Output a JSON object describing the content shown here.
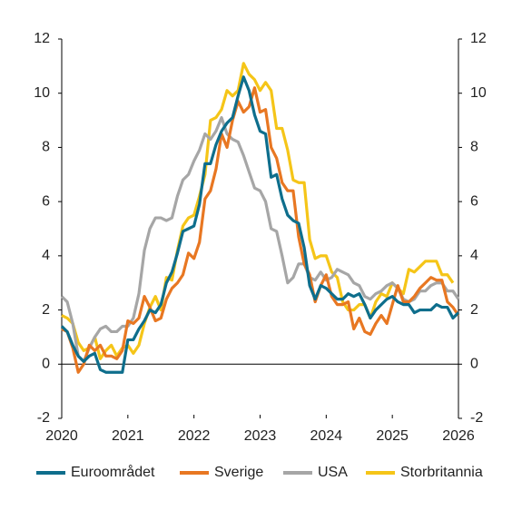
{
  "chart_data": {
    "type": "line",
    "x": [
      2020,
      2020.083,
      2020.167,
      2020.25,
      2020.333,
      2020.417,
      2020.5,
      2020.583,
      2020.667,
      2020.75,
      2020.833,
      2020.917,
      2021,
      2021.083,
      2021.167,
      2021.25,
      2021.333,
      2021.417,
      2021.5,
      2021.583,
      2021.667,
      2021.75,
      2021.833,
      2021.917,
      2022,
      2022.083,
      2022.167,
      2022.25,
      2022.333,
      2022.417,
      2022.5,
      2022.583,
      2022.667,
      2022.75,
      2022.833,
      2022.917,
      2023,
      2023.083,
      2023.167,
      2023.25,
      2023.333,
      2023.417,
      2023.5,
      2023.583,
      2023.667,
      2023.75,
      2023.833,
      2023.917,
      2024,
      2024.083,
      2024.167,
      2024.25,
      2024.333,
      2024.417,
      2024.5,
      2024.583,
      2024.667,
      2024.75,
      2024.833,
      2024.917,
      2025,
      2025.083,
      2025.167,
      2025.25,
      2025.333,
      2025.417,
      2025.5,
      2025.583,
      2025.667,
      2025.75,
      2025.833,
      2025.917,
      2026
    ],
    "series": [
      {
        "name": "Euroområdet",
        "color": "#0e6e8c",
        "values": [
          1.4,
          1.2,
          0.7,
          0.3,
          0.1,
          0.3,
          0.4,
          -0.2,
          -0.3,
          -0.3,
          -0.3,
          -0.3,
          0.9,
          0.9,
          1.3,
          1.6,
          2.0,
          1.9,
          2.2,
          3.0,
          3.4,
          4.1,
          4.9,
          5.0,
          5.1,
          5.9,
          7.4,
          7.4,
          8.1,
          8.6,
          8.9,
          9.1,
          9.9,
          10.6,
          10.1,
          9.2,
          8.6,
          8.5,
          6.9,
          7.0,
          6.1,
          5.5,
          5.3,
          5.2,
          4.3,
          2.9,
          2.4,
          2.9,
          2.8,
          2.6,
          2.4,
          2.4,
          2.6,
          2.5,
          2.6,
          2.2,
          1.7,
          2.0,
          2.2,
          2.4,
          2.5,
          2.3,
          2.2,
          2.2,
          1.9,
          2.0,
          2.0,
          2.0,
          2.2,
          2.1,
          2.1,
          1.7,
          1.9
        ]
      },
      {
        "name": "Sverige",
        "color": "#e87722",
        "values": [
          1.3,
          1.2,
          0.6,
          -0.3,
          0.0,
          0.7,
          0.5,
          0.7,
          0.3,
          0.3,
          0.2,
          0.5,
          1.6,
          1.5,
          1.7,
          2.5,
          2.1,
          1.6,
          1.7,
          2.4,
          2.8,
          3.0,
          3.3,
          4.1,
          3.9,
          4.5,
          6.1,
          6.4,
          7.2,
          8.5,
          8.0,
          9.0,
          9.7,
          9.3,
          9.5,
          10.2,
          9.3,
          9.4,
          8.0,
          7.6,
          6.7,
          6.4,
          6.4,
          4.7,
          3.7,
          3.3,
          2.3,
          2.9,
          3.3,
          2.5,
          2.2,
          2.2,
          2.3,
          1.3,
          1.7,
          1.2,
          1.1,
          1.5,
          1.8,
          1.5,
          2.2,
          2.9,
          2.3,
          2.3,
          2.5,
          2.8,
          3.0,
          3.2,
          3.1,
          3.1,
          2.3,
          2.1,
          1.8
        ]
      },
      {
        "name": "USA",
        "color": "#a6a6a6",
        "values": [
          2.5,
          2.3,
          1.5,
          0.3,
          0.1,
          0.6,
          1.0,
          1.3,
          1.4,
          1.2,
          1.2,
          1.4,
          1.4,
          1.7,
          2.6,
          4.2,
          5.0,
          5.4,
          5.4,
          5.3,
          5.4,
          6.2,
          6.8,
          7.0,
          7.5,
          7.9,
          8.5,
          8.3,
          8.6,
          9.1,
          8.5,
          8.3,
          8.2,
          7.7,
          7.1,
          6.5,
          6.4,
          6.0,
          5.0,
          4.9,
          4.0,
          3.0,
          3.2,
          3.7,
          3.7,
          3.2,
          3.1,
          3.4,
          3.1,
          3.2,
          3.5,
          3.4,
          3.3,
          3.0,
          2.9,
          2.5,
          2.4,
          2.6,
          2.7,
          2.9,
          3.0,
          2.8,
          2.4,
          2.3,
          2.4,
          2.7,
          2.7,
          2.9,
          3.0,
          3.0,
          2.7,
          2.7,
          2.4
        ]
      },
      {
        "name": "Storbritannia",
        "color": "#f5c518",
        "values": [
          1.8,
          1.7,
          1.5,
          0.8,
          0.5,
          0.6,
          1.0,
          0.2,
          0.5,
          0.7,
          0.3,
          0.6,
          0.7,
          0.4,
          0.7,
          1.5,
          2.1,
          2.5,
          2.0,
          3.2,
          3.1,
          4.2,
          5.1,
          5.4,
          5.5,
          6.2,
          7.0,
          9.0,
          9.1,
          9.4,
          10.1,
          9.9,
          10.1,
          11.1,
          10.7,
          10.5,
          10.1,
          10.4,
          10.1,
          8.7,
          8.7,
          7.9,
          6.8,
          6.7,
          6.7,
          4.6,
          3.9,
          4.0,
          4.0,
          3.4,
          3.2,
          2.3,
          2.0,
          2.0,
          2.2,
          2.2,
          1.7,
          2.3,
          2.6,
          2.5,
          3.0,
          2.8,
          2.6,
          3.5,
          3.4,
          3.6,
          3.8,
          3.8,
          3.8,
          3.3,
          3.3,
          3.0,
          null
        ]
      }
    ],
    "xlim": [
      2020,
      2026
    ],
    "xticks": [
      2020,
      2021,
      2022,
      2023,
      2024,
      2025,
      2026
    ],
    "ylim": [
      -2,
      12
    ],
    "yticks": [
      -2,
      0,
      2,
      4,
      6,
      8,
      10,
      12
    ],
    "y2lim": [
      -2,
      12
    ],
    "y2ticks": [
      -2,
      0,
      2,
      4,
      6,
      8,
      10,
      12
    ],
    "legend": "bottom"
  }
}
